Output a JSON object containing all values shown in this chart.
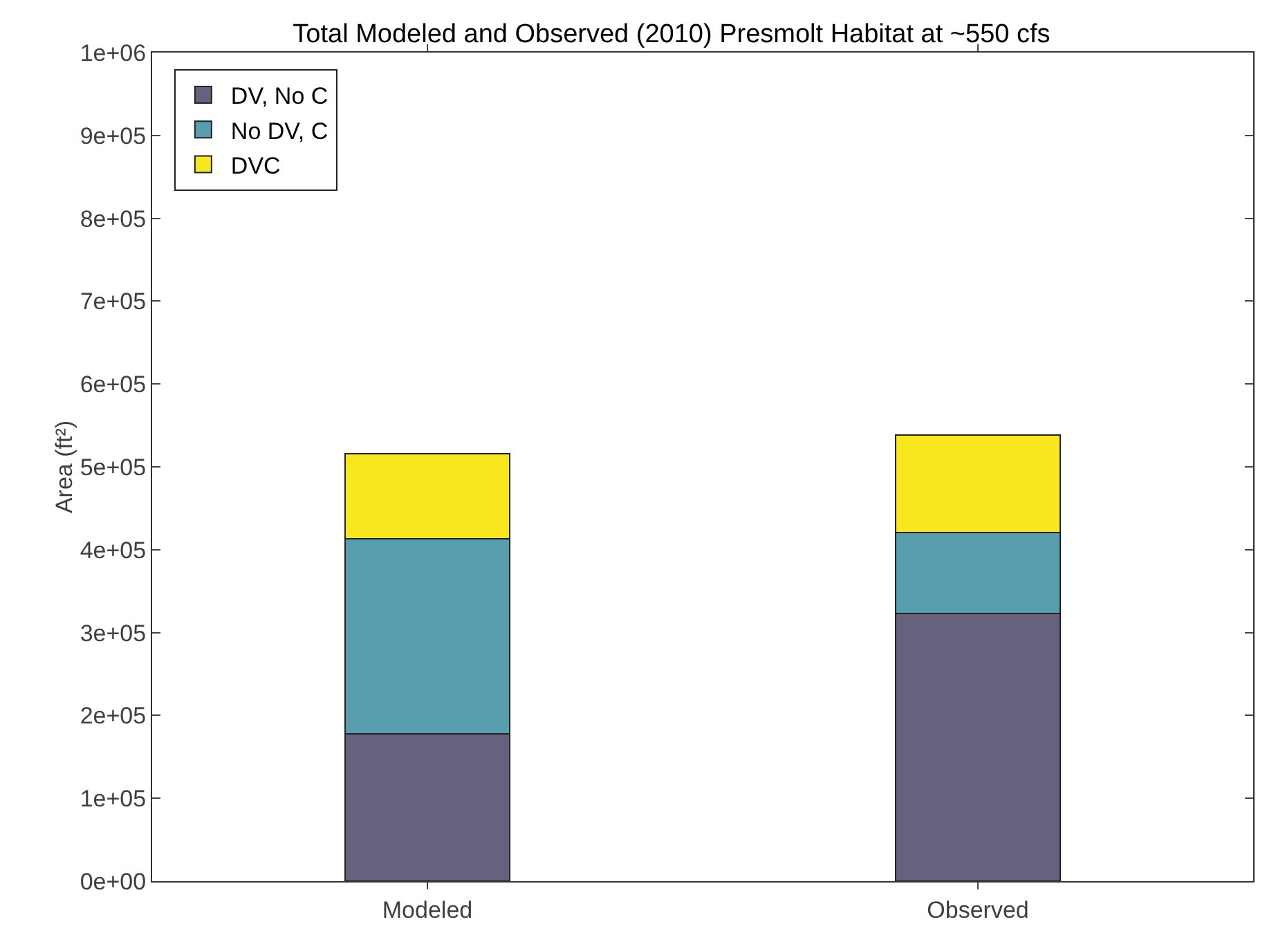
{
  "chart_data": {
    "type": "bar",
    "stacked": true,
    "title": "Total Modeled and Observed (2010) Presmolt Habitat at ~550 cfs",
    "ylabel": "Area (ft²)",
    "categories": [
      "Modeled",
      "Observed"
    ],
    "series": [
      {
        "name": "DV, No C",
        "color": "#67617e",
        "values": [
          178000,
          323000
        ]
      },
      {
        "name": "No DV, C",
        "color": "#579fae",
        "values": [
          235000,
          98000
        ]
      },
      {
        "name": "DVC",
        "color": "#f8e71c",
        "values": [
          103000,
          117000
        ]
      }
    ],
    "ylim": [
      0,
      1000000
    ],
    "yticks": [
      {
        "value": 0,
        "label": "0e+00"
      },
      {
        "value": 100000,
        "label": "1e+05"
      },
      {
        "value": 200000,
        "label": "2e+05"
      },
      {
        "value": 300000,
        "label": "3e+05"
      },
      {
        "value": 400000,
        "label": "4e+05"
      },
      {
        "value": 500000,
        "label": "5e+05"
      },
      {
        "value": 600000,
        "label": "6e+05"
      },
      {
        "value": 700000,
        "label": "7e+05"
      },
      {
        "value": 800000,
        "label": "8e+05"
      },
      {
        "value": 900000,
        "label": "9e+05"
      },
      {
        "value": 1000000,
        "label": "1e+06"
      }
    ],
    "grid": false,
    "legend": "top left"
  }
}
